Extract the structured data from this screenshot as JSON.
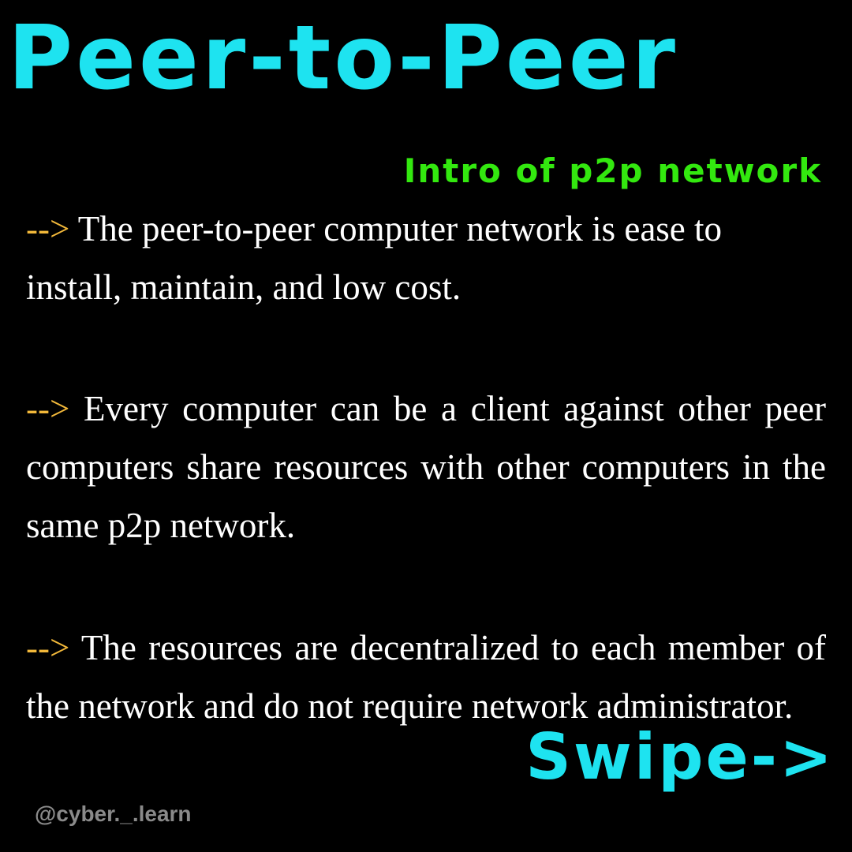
{
  "title": "Peer-to-Peer",
  "subtitle": "Intro of p2p network",
  "points": [
    {
      "arrow": "-->",
      "text": "The peer-to-peer computer network is ease to install, maintain, and low cost."
    },
    {
      "arrow": "-->",
      "text": "Every computer can be a client against other peer computers share resources with other computers in the same p2p network."
    },
    {
      "arrow": "-->",
      "text": "The resources are decentralized to each member of the network and do not require network administrator."
    }
  ],
  "swipe": "Swipe->",
  "handle": "@cyber._.learn",
  "colors": {
    "background": "#000000",
    "title": "#1ee3f0",
    "subtitle": "#33e80f",
    "arrow": "#f2b83a",
    "body_text": "#ffffff",
    "handle": "#8a8a8a"
  }
}
